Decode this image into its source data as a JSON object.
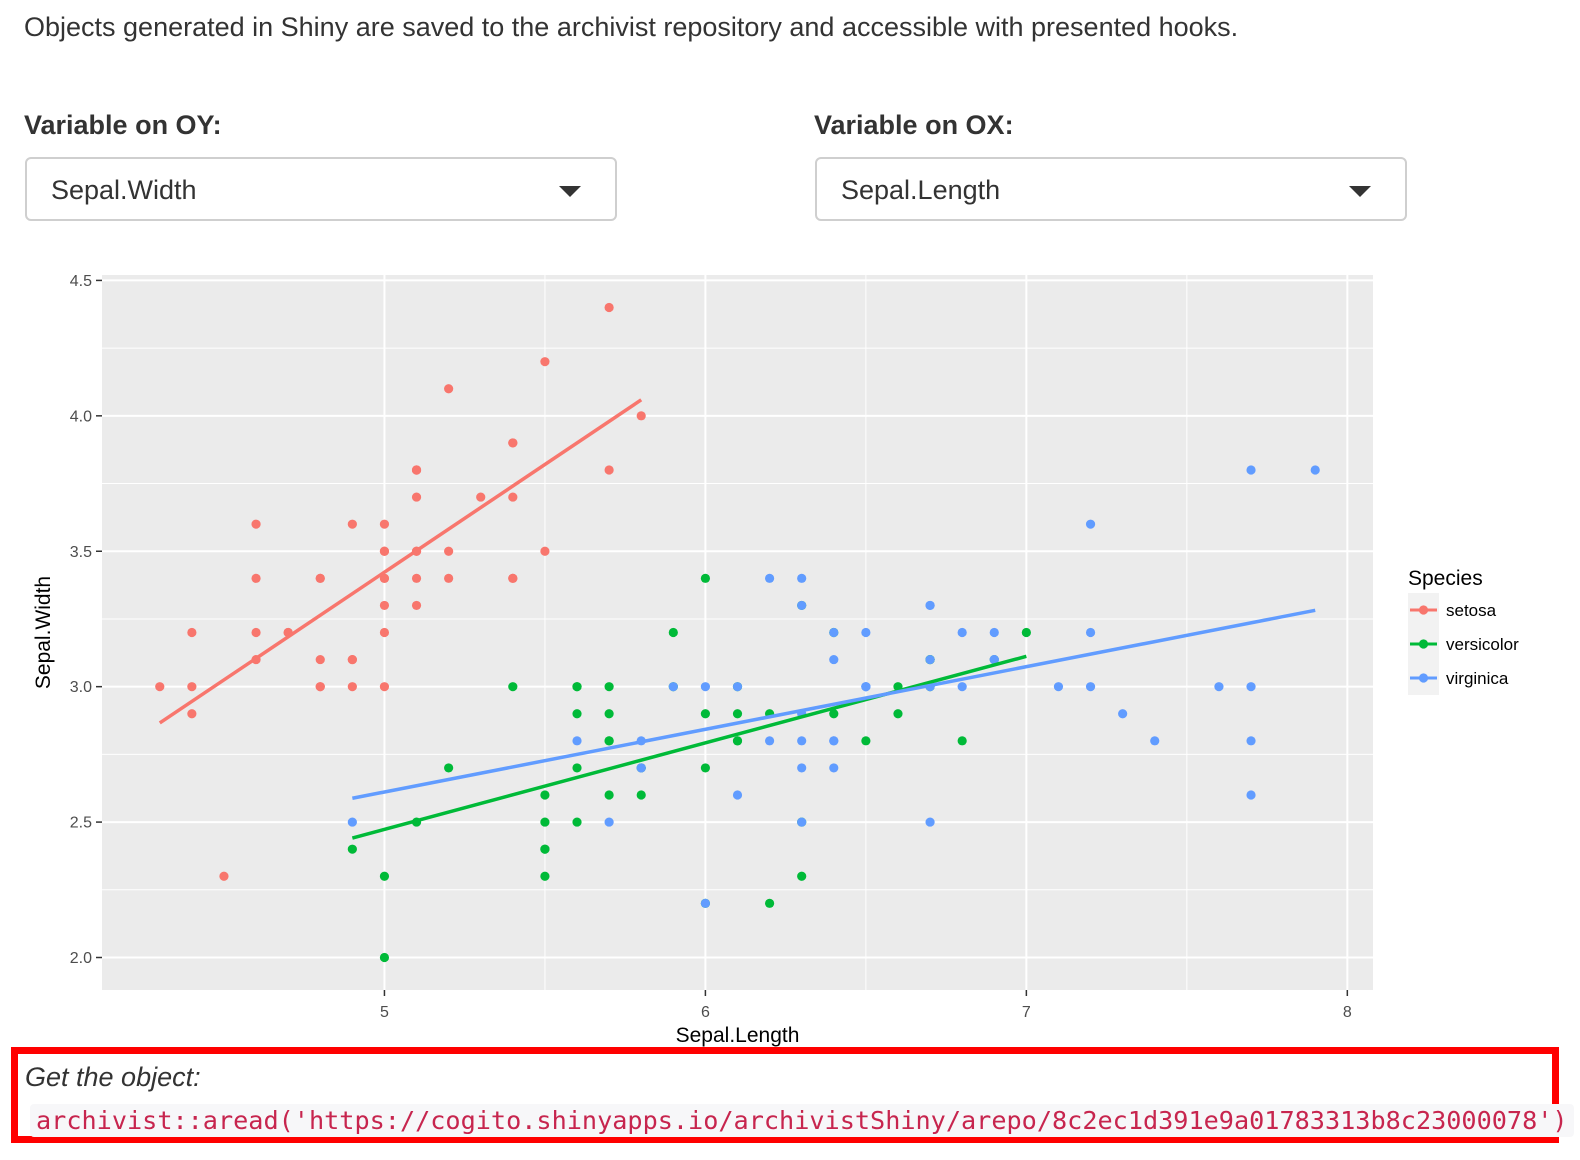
{
  "intro_text": "Objects generated in Shiny are saved to the archivist repository and accessible with presented hooks.",
  "controls": {
    "oy": {
      "label": "Variable on OY:",
      "value": "Sepal.Width"
    },
    "ox": {
      "label": "Variable on OX:",
      "value": "Sepal.Length"
    }
  },
  "hook": {
    "label": "Get the object:",
    "code": "archivist::aread('https://cogito.shinyapps.io/archivistShiny/arepo/8c2ec1d391e9a01783313b8c23000078')"
  },
  "colors": {
    "panel": "#ebebeb",
    "grid": "#ffffff",
    "highlight": "#ff0000"
  },
  "chart_data": {
    "type": "scatter",
    "xlabel": "Sepal.Length",
    "ylabel": "Sepal.Width",
    "xlim": [
      4.12,
      8.08
    ],
    "ylim": [
      1.88,
      4.52
    ],
    "x_ticks": [
      5,
      6,
      7,
      8
    ],
    "y_ticks": [
      2.0,
      2.5,
      3.0,
      3.5,
      4.0,
      4.5
    ],
    "y_tick_labels": [
      "2.0",
      "2.5",
      "3.0",
      "3.5",
      "4.0",
      "4.5"
    ],
    "grid": true,
    "legend": {
      "title": "Species",
      "position": "right"
    },
    "series": [
      {
        "name": "setosa",
        "color": "#F8766D",
        "points": [
          [
            5.1,
            3.5
          ],
          [
            4.9,
            3.0
          ],
          [
            4.7,
            3.2
          ],
          [
            4.6,
            3.1
          ],
          [
            5.0,
            3.6
          ],
          [
            5.4,
            3.9
          ],
          [
            4.6,
            3.4
          ],
          [
            5.0,
            3.4
          ],
          [
            4.4,
            2.9
          ],
          [
            4.9,
            3.1
          ],
          [
            5.4,
            3.7
          ],
          [
            4.8,
            3.4
          ],
          [
            4.8,
            3.0
          ],
          [
            4.3,
            3.0
          ],
          [
            5.8,
            4.0
          ],
          [
            5.7,
            4.4
          ],
          [
            5.4,
            3.9
          ],
          [
            5.1,
            3.5
          ],
          [
            5.7,
            3.8
          ],
          [
            5.1,
            3.8
          ],
          [
            5.4,
            3.4
          ],
          [
            5.1,
            3.7
          ],
          [
            4.6,
            3.6
          ],
          [
            5.1,
            3.3
          ],
          [
            4.8,
            3.4
          ],
          [
            5.0,
            3.0
          ],
          [
            5.0,
            3.4
          ],
          [
            5.2,
            3.5
          ],
          [
            5.2,
            3.4
          ],
          [
            4.7,
            3.2
          ],
          [
            4.8,
            3.1
          ],
          [
            5.4,
            3.4
          ],
          [
            5.2,
            4.1
          ],
          [
            5.5,
            4.2
          ],
          [
            4.9,
            3.1
          ],
          [
            5.0,
            3.2
          ],
          [
            5.5,
            3.5
          ],
          [
            4.9,
            3.6
          ],
          [
            4.4,
            3.0
          ],
          [
            5.1,
            3.4
          ],
          [
            5.0,
            3.5
          ],
          [
            4.5,
            2.3
          ],
          [
            4.4,
            3.2
          ],
          [
            5.0,
            3.5
          ],
          [
            5.1,
            3.8
          ],
          [
            4.8,
            3.0
          ],
          [
            5.1,
            3.8
          ],
          [
            4.6,
            3.2
          ],
          [
            5.3,
            3.7
          ],
          [
            5.0,
            3.3
          ]
        ],
        "fit": [
          [
            4.3,
            2.866
          ],
          [
            5.8,
            4.059
          ]
        ]
      },
      {
        "name": "versicolor",
        "color": "#00BA38",
        "points": [
          [
            7.0,
            3.2
          ],
          [
            6.4,
            3.2
          ],
          [
            6.9,
            3.1
          ],
          [
            5.5,
            2.3
          ],
          [
            6.5,
            2.8
          ],
          [
            5.7,
            2.8
          ],
          [
            6.3,
            3.3
          ],
          [
            4.9,
            2.4
          ],
          [
            6.6,
            2.9
          ],
          [
            5.2,
            2.7
          ],
          [
            5.0,
            2.0
          ],
          [
            5.9,
            3.0
          ],
          [
            6.0,
            2.2
          ],
          [
            6.1,
            2.9
          ],
          [
            5.6,
            2.9
          ],
          [
            6.7,
            3.1
          ],
          [
            5.6,
            3.0
          ],
          [
            5.8,
            2.7
          ],
          [
            6.2,
            2.2
          ],
          [
            5.6,
            2.5
          ],
          [
            5.9,
            3.2
          ],
          [
            6.1,
            2.8
          ],
          [
            6.3,
            2.5
          ],
          [
            6.1,
            2.8
          ],
          [
            6.4,
            2.9
          ],
          [
            6.6,
            3.0
          ],
          [
            6.8,
            2.8
          ],
          [
            6.7,
            3.0
          ],
          [
            6.0,
            2.9
          ],
          [
            5.7,
            2.6
          ],
          [
            5.5,
            2.4
          ],
          [
            5.5,
            2.4
          ],
          [
            5.8,
            2.7
          ],
          [
            6.0,
            2.7
          ],
          [
            5.4,
            3.0
          ],
          [
            6.0,
            3.4
          ],
          [
            6.7,
            3.1
          ],
          [
            6.3,
            2.3
          ],
          [
            5.6,
            3.0
          ],
          [
            5.5,
            2.5
          ],
          [
            5.5,
            2.6
          ],
          [
            6.1,
            3.0
          ],
          [
            5.8,
            2.6
          ],
          [
            5.0,
            2.3
          ],
          [
            5.6,
            2.7
          ],
          [
            5.7,
            3.0
          ],
          [
            5.7,
            2.9
          ],
          [
            6.2,
            2.9
          ],
          [
            5.1,
            2.5
          ],
          [
            5.7,
            2.8
          ]
        ],
        "fit": [
          [
            4.9,
            2.441
          ],
          [
            7.0,
            3.112
          ]
        ]
      },
      {
        "name": "virginica",
        "color": "#619CFF",
        "points": [
          [
            6.3,
            3.3
          ],
          [
            5.8,
            2.7
          ],
          [
            7.1,
            3.0
          ],
          [
            6.3,
            2.9
          ],
          [
            6.5,
            3.0
          ],
          [
            7.6,
            3.0
          ],
          [
            4.9,
            2.5
          ],
          [
            7.3,
            2.9
          ],
          [
            6.7,
            2.5
          ],
          [
            7.2,
            3.6
          ],
          [
            6.5,
            3.2
          ],
          [
            6.4,
            2.7
          ],
          [
            6.8,
            3.0
          ],
          [
            5.7,
            2.5
          ],
          [
            5.8,
            2.8
          ],
          [
            6.4,
            3.2
          ],
          [
            6.5,
            3.0
          ],
          [
            7.7,
            3.8
          ],
          [
            7.7,
            2.6
          ],
          [
            6.0,
            2.2
          ],
          [
            6.9,
            3.2
          ],
          [
            5.6,
            2.8
          ],
          [
            7.7,
            2.8
          ],
          [
            6.3,
            2.7
          ],
          [
            6.7,
            3.3
          ],
          [
            7.2,
            3.2
          ],
          [
            6.2,
            2.8
          ],
          [
            6.1,
            3.0
          ],
          [
            6.4,
            2.8
          ],
          [
            7.2,
            3.0
          ],
          [
            7.4,
            2.8
          ],
          [
            7.9,
            3.8
          ],
          [
            6.4,
            2.8
          ],
          [
            6.3,
            2.8
          ],
          [
            6.1,
            2.6
          ],
          [
            7.7,
            3.0
          ],
          [
            6.3,
            3.4
          ],
          [
            6.4,
            3.1
          ],
          [
            6.0,
            3.0
          ],
          [
            6.9,
            3.1
          ],
          [
            6.7,
            3.1
          ],
          [
            6.9,
            3.1
          ],
          [
            5.8,
            2.7
          ],
          [
            6.8,
            3.2
          ],
          [
            6.7,
            3.3
          ],
          [
            6.7,
            3.0
          ],
          [
            6.3,
            2.5
          ],
          [
            6.5,
            3.0
          ],
          [
            6.2,
            3.4
          ],
          [
            5.9,
            3.0
          ]
        ],
        "fit": [
          [
            4.9,
            2.588
          ],
          [
            7.9,
            3.282
          ]
        ]
      }
    ]
  }
}
